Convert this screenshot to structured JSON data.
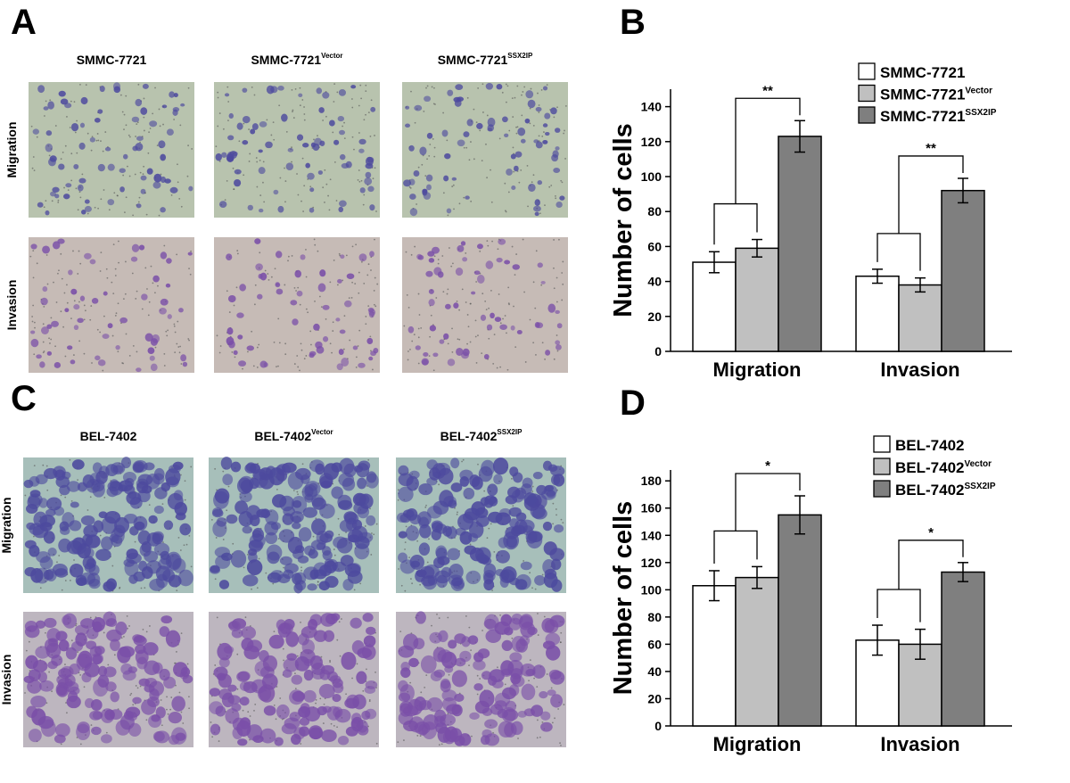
{
  "figure": {
    "panel_labels": [
      "A",
      "B",
      "C",
      "D"
    ],
    "image_panels": [
      {
        "columns": [
          {
            "name": "SMMC-7721"
          },
          {
            "name": "SMMC-7721",
            "superscript": "Vector"
          },
          {
            "name": "SMMC-7721",
            "superscript": "SSX2IP"
          }
        ],
        "rows": [
          "Migration",
          "Invasion"
        ]
      },
      {
        "columns": [
          {
            "name": "BEL-7402"
          },
          {
            "name": "BEL-7402",
            "superscript": "Vector"
          },
          {
            "name": "BEL-7402",
            "superscript": "SSX2IP"
          }
        ],
        "rows": [
          "Migration",
          "Invasion"
        ]
      }
    ]
  },
  "chart_data": [
    {
      "type": "bar",
      "ylabel": "Number of cells",
      "categories": [
        "Migration",
        "Invasion"
      ],
      "series": [
        {
          "name": "SMMC-7721",
          "color": "#ffffff",
          "values": [
            51,
            43
          ],
          "errors": [
            6,
            4
          ]
        },
        {
          "name": "SMMC-7721",
          "superscript": "Vector",
          "color": "#c0c0c0",
          "values": [
            59,
            38
          ],
          "errors": [
            5,
            4
          ]
        },
        {
          "name": "SMMC-7721",
          "superscript": "SSX2IP",
          "color": "#7f7f7f",
          "values": [
            123,
            92
          ],
          "errors": [
            9,
            7
          ]
        }
      ],
      "significance": [
        "**",
        "**"
      ],
      "ylim": [
        0,
        150
      ],
      "yticks": [
        0,
        20,
        40,
        60,
        80,
        100,
        120,
        140
      ]
    },
    {
      "type": "bar",
      "ylabel": "Number of cells",
      "categories": [
        "Migration",
        "Invasion"
      ],
      "series": [
        {
          "name": "BEL-7402",
          "color": "#ffffff",
          "values": [
            103,
            63
          ],
          "errors": [
            11,
            11
          ]
        },
        {
          "name": "BEL-7402",
          "superscript": "Vector",
          "color": "#c0c0c0",
          "values": [
            109,
            60
          ],
          "errors": [
            8,
            11
          ]
        },
        {
          "name": "BEL-7402",
          "superscript": "SSX2IP",
          "color": "#7f7f7f",
          "values": [
            155,
            113
          ],
          "errors": [
            14,
            7
          ]
        }
      ],
      "significance": [
        "*",
        "*"
      ],
      "ylim": [
        0,
        188
      ],
      "yticks": [
        0,
        20,
        40,
        60,
        80,
        100,
        120,
        140,
        160,
        180
      ]
    }
  ]
}
